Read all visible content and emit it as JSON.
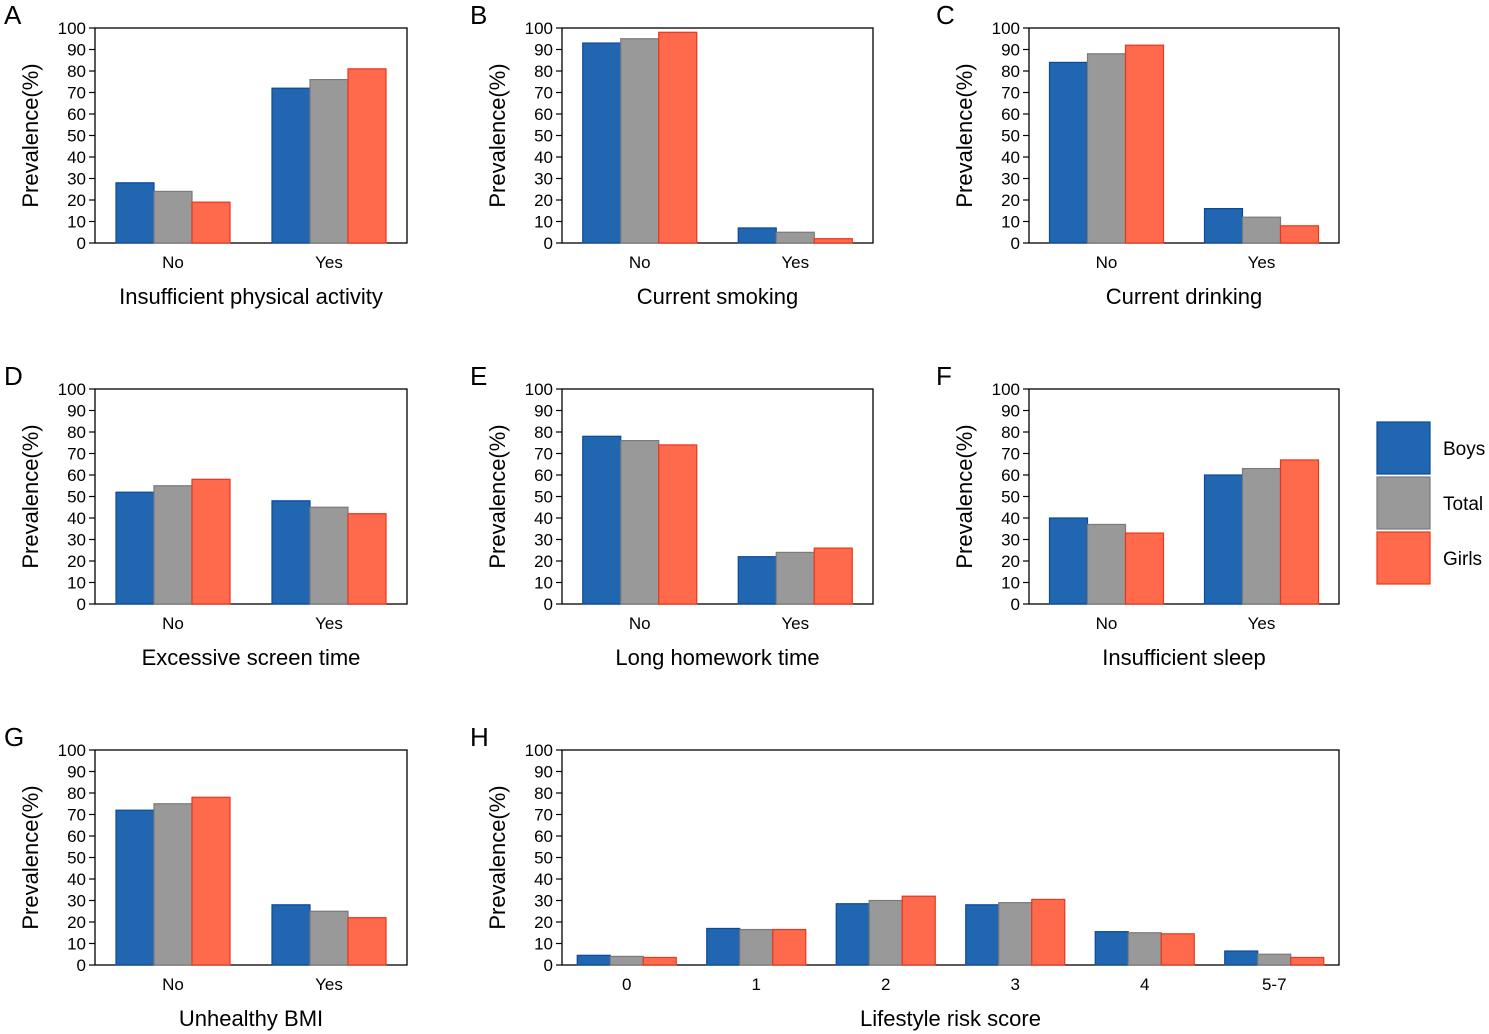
{
  "colors": {
    "Boys": "#2166b0",
    "Total": "#999999",
    "Girls": "#ff6a4c",
    "BoysEdge": "#0b4a9a",
    "TotalEdge": "#7a7a7a",
    "GirlsEdge": "#e8371c"
  },
  "legend": [
    "Boys",
    "Total",
    "Girls"
  ],
  "chart_data": [
    {
      "type": "bar",
      "panel": "A",
      "title": "",
      "xlabel": "Insufficient physical activity",
      "ylabel": "Prevalence(%)",
      "ylim": [
        0,
        100
      ],
      "yticks": [
        "0",
        "10",
        "20",
        "30",
        "40",
        "50",
        "60",
        "70",
        "80",
        "90",
        "100"
      ],
      "categories": [
        "No",
        "Yes"
      ],
      "series": [
        {
          "name": "Boys",
          "values": [
            28,
            72
          ]
        },
        {
          "name": "Total",
          "values": [
            24,
            76
          ]
        },
        {
          "name": "Girls",
          "values": [
            19,
            81
          ]
        }
      ]
    },
    {
      "type": "bar",
      "panel": "B",
      "title": "",
      "xlabel": "Current smoking",
      "ylabel": "Prevalence(%)",
      "ylim": [
        0,
        100
      ],
      "yticks": [
        "0",
        "10",
        "20",
        "30",
        "40",
        "50",
        "60",
        "70",
        "80",
        "90",
        "100"
      ],
      "categories": [
        "No",
        "Yes"
      ],
      "series": [
        {
          "name": "Boys",
          "values": [
            93,
            7
          ]
        },
        {
          "name": "Total",
          "values": [
            95,
            5
          ]
        },
        {
          "name": "Girls",
          "values": [
            98,
            2
          ]
        }
      ]
    },
    {
      "type": "bar",
      "panel": "C",
      "title": "",
      "xlabel": "Current drinking",
      "ylabel": "Prevalence(%)",
      "ylim": [
        0,
        100
      ],
      "yticks": [
        "0",
        "10",
        "20",
        "30",
        "40",
        "50",
        "60",
        "70",
        "80",
        "90",
        "100"
      ],
      "categories": [
        "No",
        "Yes"
      ],
      "series": [
        {
          "name": "Boys",
          "values": [
            84,
            16
          ]
        },
        {
          "name": "Total",
          "values": [
            88,
            12
          ]
        },
        {
          "name": "Girls",
          "values": [
            92,
            8
          ]
        }
      ]
    },
    {
      "type": "bar",
      "panel": "D",
      "title": "",
      "xlabel": "Excessive screen time",
      "ylabel": "Prevalence(%)",
      "ylim": [
        0,
        100
      ],
      "yticks": [
        "0",
        "10",
        "20",
        "30",
        "40",
        "50",
        "60",
        "70",
        "80",
        "90",
        "100"
      ],
      "categories": [
        "No",
        "Yes"
      ],
      "series": [
        {
          "name": "Boys",
          "values": [
            52,
            48
          ]
        },
        {
          "name": "Total",
          "values": [
            55,
            45
          ]
        },
        {
          "name": "Girls",
          "values": [
            58,
            42
          ]
        }
      ]
    },
    {
      "type": "bar",
      "panel": "E",
      "title": "",
      "xlabel": "Long homework time",
      "ylabel": "Prevalence(%)",
      "ylim": [
        0,
        100
      ],
      "yticks": [
        "0",
        "10",
        "20",
        "30",
        "40",
        "50",
        "60",
        "70",
        "80",
        "90",
        "100"
      ],
      "categories": [
        "No",
        "Yes"
      ],
      "series": [
        {
          "name": "Boys",
          "values": [
            78,
            22
          ]
        },
        {
          "name": "Total",
          "values": [
            76,
            24
          ]
        },
        {
          "name": "Girls",
          "values": [
            74,
            26
          ]
        }
      ]
    },
    {
      "type": "bar",
      "panel": "F",
      "title": "",
      "xlabel": "Insufficient sleep",
      "ylabel": "Prevalence(%)",
      "ylim": [
        0,
        100
      ],
      "yticks": [
        "0",
        "10",
        "20",
        "30",
        "40",
        "50",
        "60",
        "70",
        "80",
        "90",
        "100"
      ],
      "categories": [
        "No",
        "Yes"
      ],
      "series": [
        {
          "name": "Boys",
          "values": [
            40,
            60
          ]
        },
        {
          "name": "Total",
          "values": [
            37,
            63
          ]
        },
        {
          "name": "Girls",
          "values": [
            33,
            67
          ]
        }
      ]
    },
    {
      "type": "bar",
      "panel": "G",
      "title": "",
      "xlabel": "Unhealthy BMI",
      "ylabel": "Prevalence(%)",
      "ylim": [
        0,
        100
      ],
      "yticks": [
        "0",
        "10",
        "20",
        "30",
        "40",
        "50",
        "60",
        "70",
        "80",
        "90",
        "100"
      ],
      "categories": [
        "No",
        "Yes"
      ],
      "series": [
        {
          "name": "Boys",
          "values": [
            72,
            28
          ]
        },
        {
          "name": "Total",
          "values": [
            75,
            25
          ]
        },
        {
          "name": "Girls",
          "values": [
            78,
            22
          ]
        }
      ]
    },
    {
      "type": "bar",
      "panel": "H",
      "title": "",
      "xlabel": "Lifestyle risk score",
      "ylabel": "Prevalence(%)",
      "ylim": [
        0,
        100
      ],
      "yticks": [
        "0",
        "10",
        "20",
        "30",
        "40",
        "50",
        "60",
        "70",
        "80",
        "90",
        "100"
      ],
      "categories": [
        "0",
        "1",
        "2",
        "3",
        "4",
        "5-7"
      ],
      "series": [
        {
          "name": "Boys",
          "values": [
            4.5,
            17,
            28.5,
            28,
            15.5,
            6.5
          ]
        },
        {
          "name": "Total",
          "values": [
            4,
            16.5,
            30,
            29,
            15,
            5
          ]
        },
        {
          "name": "Girls",
          "values": [
            3.5,
            16.5,
            32,
            30.5,
            14.5,
            3.5
          ]
        }
      ]
    }
  ]
}
